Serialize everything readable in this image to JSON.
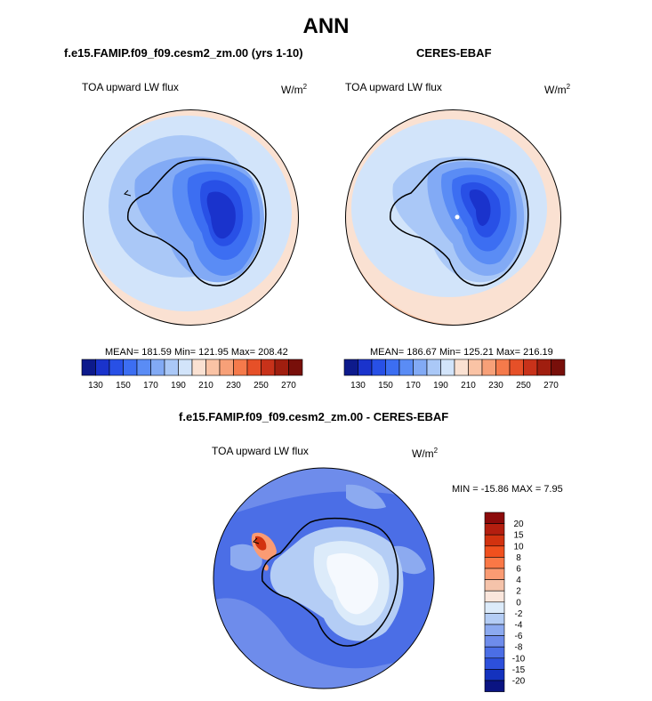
{
  "page": {
    "title": "ANN",
    "left_panel_title": "f.e15.FAMIP.f09_f09.cesm2_zm.00 (yrs 1-10)",
    "right_panel_title": "CERES-EBAF",
    "diff_title": "f.e15.FAMIP.f09_f09.cesm2_zm.00 - CERES-EBAF",
    "variable": "TOA upward LW flux",
    "units_base": "W/m",
    "units_exp": "2"
  },
  "chart_data": [
    {
      "type": "heatmap",
      "projection": "south polar stereographic",
      "title": "f.e15.FAMIP.f09_f09.cesm2_zm.00 (yrs 1-10)",
      "variable": "TOA upward LW flux",
      "units": "W/m2",
      "stats": {
        "mean": 181.59,
        "min": 121.95,
        "max": 208.42
      },
      "stats_text": "MEAN= 181.59  Min= 121.95  Max= 208.42",
      "colorbar_levels": [
        130,
        140,
        150,
        160,
        170,
        180,
        190,
        200,
        210,
        220,
        230,
        240,
        250,
        260,
        270
      ],
      "colorbar_labels": [
        "130",
        "150",
        "170",
        "190",
        "210",
        "230",
        "250",
        "270"
      ],
      "colorbar_colors": [
        "#0d1a8c",
        "#1a33cc",
        "#2850e6",
        "#3c6ef2",
        "#5a8cf5",
        "#82aaf5",
        "#aac8f7",
        "#d2e4fa",
        "#fae1d2",
        "#fac3a5",
        "#f7a078",
        "#f57a4b",
        "#e65028",
        "#c8321a",
        "#a01e0f",
        "#780f0a"
      ]
    },
    {
      "type": "heatmap",
      "projection": "south polar stereographic",
      "title": "CERES-EBAF",
      "variable": "TOA upward LW flux",
      "units": "W/m2",
      "stats": {
        "mean": 186.67,
        "min": 125.21,
        "max": 216.19
      },
      "stats_text": "MEAN= 186.67  Min= 125.21  Max= 216.19",
      "colorbar_levels": [
        130,
        140,
        150,
        160,
        170,
        180,
        190,
        200,
        210,
        220,
        230,
        240,
        250,
        260,
        270
      ],
      "colorbar_labels": [
        "130",
        "150",
        "170",
        "190",
        "210",
        "230",
        "250",
        "270"
      ]
    },
    {
      "type": "heatmap",
      "projection": "south polar stereographic",
      "title": "f.e15.FAMIP.f09_f09.cesm2_zm.00 - CERES-EBAF",
      "variable": "TOA upward LW flux",
      "units": "W/m2",
      "stats": {
        "min": -15.86,
        "max": 7.95
      },
      "stats_text": "MIN = -15.86 MAX =   7.95",
      "colorbar_levels": [
        -20,
        -15,
        -10,
        -8,
        -6,
        -4,
        -2,
        0,
        2,
        4,
        6,
        8,
        10,
        15,
        20
      ],
      "colorbar_labels": [
        "20",
        "15",
        "10",
        "8",
        "6",
        "4",
        "2",
        "0",
        "-2",
        "-4",
        "-6",
        "-8",
        "-10",
        "-15",
        "-20"
      ],
      "colorbar_colors_top_to_bottom": [
        "#8c0a0a",
        "#b41e0f",
        "#d2320f",
        "#f0501e",
        "#fa7846",
        "#fa9b73",
        "#f5c3aa",
        "#fae6dc",
        "#dcebfa",
        "#b4cdf5",
        "#8caaf0",
        "#6e8ceb",
        "#4b6ee6",
        "#2d50dc",
        "#1432be",
        "#0a1482"
      ]
    }
  ]
}
